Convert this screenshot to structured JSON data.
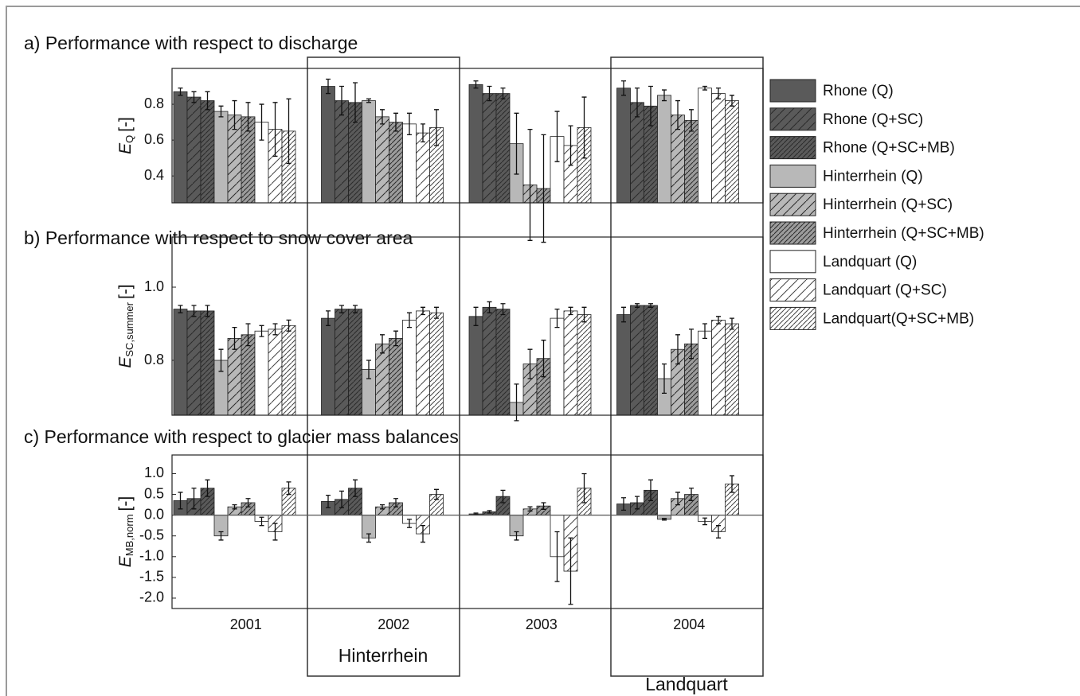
{
  "chart_data": [
    {
      "type": "bar",
      "title": "a) Performance with respect to discharge",
      "ylabel": {
        "symbol": "E",
        "subscript": "Q",
        "unit": "[-]"
      },
      "ylim": [
        0.25,
        1.0
      ],
      "yticks": [
        0.4,
        0.6,
        0.8
      ],
      "series": [
        {
          "name": "Rhone (Q)",
          "color": "#5a5a5a",
          "hatch": "none",
          "values": [
            0.87,
            0.9,
            0.91,
            0.89
          ],
          "errors": [
            0.02,
            0.04,
            0.02,
            0.04
          ]
        },
        {
          "name": "Rhone (Q+SC)",
          "color": "#5a5a5a",
          "hatch": "sparse",
          "values": [
            0.84,
            0.82,
            0.86,
            0.81
          ],
          "errors": [
            0.03,
            0.08,
            0.04,
            0.08
          ]
        },
        {
          "name": "Rhone (Q+SC+MB)",
          "color": "#5a5a5a",
          "hatch": "dense",
          "values": [
            0.82,
            0.81,
            0.86,
            0.79
          ],
          "errors": [
            0.05,
            0.11,
            0.03,
            0.11
          ]
        },
        {
          "name": "Hinterrhein (Q)",
          "color": "#b8b8b8",
          "hatch": "none",
          "values": [
            0.76,
            0.82,
            0.58,
            0.85
          ],
          "errors": [
            0.03,
            0.01,
            0.17,
            0.03
          ]
        },
        {
          "name": "Hinterrhein (Q+SC)",
          "color": "#b8b8b8",
          "hatch": "sparse",
          "values": [
            0.74,
            0.73,
            0.35,
            0.74
          ],
          "errors": [
            0.08,
            0.04,
            0.31,
            0.08
          ]
        },
        {
          "name": "Hinterrhein (Q+SC+MB)",
          "color": "#9c9c9c",
          "hatch": "dense",
          "values": [
            0.73,
            0.7,
            0.33,
            0.71
          ],
          "errors": [
            0.08,
            0.05,
            0.3,
            0.06
          ]
        },
        {
          "name": "Landquart (Q)",
          "color": "#ffffff",
          "hatch": "none",
          "values": [
            0.7,
            0.69,
            0.62,
            0.89
          ],
          "errors": [
            0.1,
            0.06,
            0.14,
            0.01
          ]
        },
        {
          "name": "Landquart (Q+SC)",
          "color": "#ffffff",
          "hatch": "sparse",
          "values": [
            0.66,
            0.64,
            0.57,
            0.86
          ],
          "errors": [
            0.15,
            0.05,
            0.11,
            0.03
          ]
        },
        {
          "name": "Landquart(Q+SC+MB)",
          "color": "#ffffff",
          "hatch": "dense",
          "values": [
            0.65,
            0.67,
            0.67,
            0.82
          ],
          "errors": [
            0.18,
            0.1,
            0.17,
            0.03
          ]
        }
      ]
    },
    {
      "type": "bar",
      "title": "b) Performance with respect to snow cover area",
      "ylabel": {
        "symbol": "E",
        "subscript": "SC,summer",
        "unit": "[-]"
      },
      "ylim": [
        0.65,
        1.137
      ],
      "yticks": [
        0.8,
        {
          "value": 1.0,
          "label": "1.0"
        }
      ],
      "series": [
        {
          "color": "#5a5a5a",
          "hatch": "none",
          "values": [
            0.94,
            0.915,
            0.92,
            0.925
          ],
          "errors": [
            0.01,
            0.02,
            0.025,
            0.02
          ]
        },
        {
          "color": "#5a5a5a",
          "hatch": "sparse",
          "values": [
            0.935,
            0.94,
            0.945,
            0.95
          ],
          "errors": [
            0.015,
            0.01,
            0.015,
            0.005
          ]
        },
        {
          "color": "#5a5a5a",
          "hatch": "dense",
          "values": [
            0.935,
            0.94,
            0.94,
            0.95
          ],
          "errors": [
            0.015,
            0.01,
            0.015,
            0.005
          ]
        },
        {
          "color": "#b8b8b8",
          "hatch": "none",
          "values": [
            0.8,
            0.775,
            0.685,
            0.75
          ],
          "errors": [
            0.03,
            0.025,
            0.05,
            0.04
          ]
        },
        {
          "color": "#b8b8b8",
          "hatch": "sparse",
          "values": [
            0.86,
            0.845,
            0.79,
            0.83
          ],
          "errors": [
            0.03,
            0.025,
            0.04,
            0.04
          ]
        },
        {
          "color": "#9c9c9c",
          "hatch": "dense",
          "values": [
            0.87,
            0.86,
            0.805,
            0.845
          ],
          "errors": [
            0.03,
            0.02,
            0.05,
            0.04
          ]
        },
        {
          "color": "#ffffff",
          "hatch": "none",
          "values": [
            0.88,
            0.91,
            0.915,
            0.88
          ],
          "errors": [
            0.015,
            0.02,
            0.025,
            0.02
          ]
        },
        {
          "color": "#ffffff",
          "hatch": "sparse",
          "values": [
            0.885,
            0.935,
            0.935,
            0.91
          ],
          "errors": [
            0.015,
            0.01,
            0.01,
            0.01
          ]
        },
        {
          "color": "#ffffff",
          "hatch": "dense",
          "values": [
            0.895,
            0.93,
            0.925,
            0.9
          ],
          "errors": [
            0.015,
            0.015,
            0.02,
            0.015
          ]
        }
      ]
    },
    {
      "type": "bar",
      "title": "c) Performance with respect to glacier mass balances",
      "ylabel": {
        "symbol": "E",
        "subscript": "MB,norm",
        "unit": "[-]"
      },
      "ylim": [
        -2.25,
        1.45
      ],
      "yticks": [
        {
          "value": 1.0,
          "label": "1.0"
        },
        0.5,
        {
          "value": 0,
          "label": "0.0"
        },
        -0.5,
        {
          "value": -1.0,
          "label": "-1.0"
        },
        -1.5,
        {
          "value": -2.0,
          "label": "-2.0"
        }
      ],
      "categories": [
        "2001",
        "2002",
        "2003",
        "2004"
      ],
      "series": [
        {
          "color": "#5a5a5a",
          "hatch": "none",
          "values": [
            0.35,
            0.33,
            0.03,
            0.27
          ],
          "errors": [
            0.2,
            0.15,
            0.02,
            0.15
          ]
        },
        {
          "color": "#5a5a5a",
          "hatch": "sparse",
          "values": [
            0.4,
            0.38,
            0.08,
            0.3
          ],
          "errors": [
            0.25,
            0.2,
            0.03,
            0.15
          ]
        },
        {
          "color": "#5a5a5a",
          "hatch": "dense",
          "values": [
            0.65,
            0.65,
            0.45,
            0.6
          ],
          "errors": [
            0.2,
            0.2,
            0.15,
            0.25
          ]
        },
        {
          "color": "#b8b8b8",
          "hatch": "none",
          "values": [
            -0.5,
            -0.55,
            -0.5,
            -0.1
          ],
          "errors": [
            0.1,
            0.1,
            0.1,
            0.02
          ]
        },
        {
          "color": "#b8b8b8",
          "hatch": "sparse",
          "values": [
            0.2,
            0.2,
            0.15,
            0.4
          ],
          "errors": [
            0.05,
            0.05,
            0.05,
            0.15
          ]
        },
        {
          "color": "#9c9c9c",
          "hatch": "dense",
          "values": [
            0.3,
            0.3,
            0.22,
            0.5
          ],
          "errors": [
            0.1,
            0.1,
            0.08,
            0.15
          ]
        },
        {
          "color": "#ffffff",
          "hatch": "none",
          "values": [
            -0.15,
            -0.2,
            -1.0,
            -0.15
          ],
          "errors": [
            0.1,
            0.1,
            0.6,
            0.08
          ]
        },
        {
          "color": "#ffffff",
          "hatch": "sparse",
          "values": [
            -0.4,
            -0.45,
            -1.35,
            -0.4
          ],
          "errors": [
            0.2,
            0.2,
            0.8,
            0.15
          ]
        },
        {
          "color": "#ffffff",
          "hatch": "dense",
          "values": [
            0.65,
            0.5,
            0.65,
            0.75
          ],
          "errors": [
            0.15,
            0.12,
            0.35,
            0.2
          ]
        }
      ]
    }
  ],
  "annotations": [
    "Hinterrhein",
    "Landquart"
  ]
}
